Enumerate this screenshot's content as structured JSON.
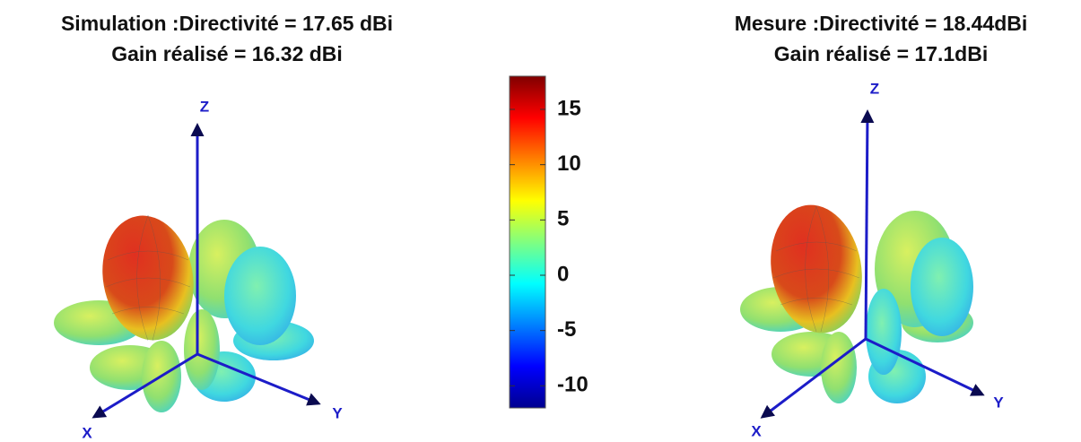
{
  "panels": [
    {
      "title": [
        "Simulation :Directivité = 17.65 dBi",
        "Gain réalisé = 16.32 dBi"
      ],
      "axes": {
        "x": "X",
        "y": "Y",
        "z": "Z"
      }
    },
    {
      "title": [
        "Mesure :Directivité = 18.44dBi",
        "Gain réalisé = 17.1dBi"
      ],
      "axes": {
        "x": "X",
        "y": "Y",
        "z": "Z"
      }
    }
  ],
  "colorbar": {
    "lim": [
      -12,
      18
    ],
    "ticks": [
      -10,
      -5,
      0,
      5,
      10,
      15
    ],
    "colormap": [
      "#00008f",
      "#0000ff",
      "#0080ff",
      "#00ffff",
      "#80ff80",
      "#ffff00",
      "#ff8000",
      "#ff0000",
      "#800000"
    ]
  }
}
